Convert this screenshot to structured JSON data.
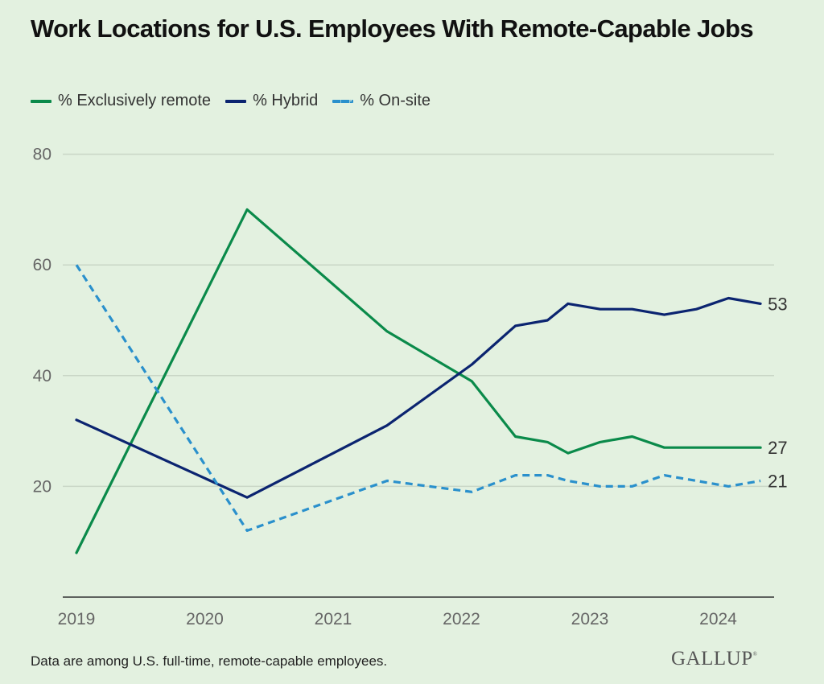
{
  "colors": {
    "background": "#e3f1e0",
    "remote": "#0a8a4a",
    "hybrid": "#0b2470",
    "onsite": "#2a90cc",
    "grid": "#c9d6c6",
    "axis": "#333333",
    "tick": "#666666"
  },
  "logo": {
    "text": "GALLUP",
    "mark": "®"
  },
  "footnote": "Data are among U.S. full-time, remote-capable employees.",
  "chart_data": {
    "type": "line",
    "title": "Work Locations for U.S. Employees With Remote-Capable Jobs",
    "xlabel": "",
    "ylabel": "",
    "x": [
      2019.0,
      2020.33,
      2021.42,
      2022.08,
      2022.42,
      2022.67,
      2022.83,
      2023.08,
      2023.33,
      2023.58,
      2023.83,
      2024.08,
      2024.33
    ],
    "xlim": [
      2019.0,
      2024.42
    ],
    "ylim": [
      0,
      80
    ],
    "x_ticks": [
      2019,
      2020,
      2021,
      2022,
      2023,
      2024
    ],
    "x_tick_labels": [
      "2019",
      "2020",
      "2021",
      "2022",
      "2023",
      "2024"
    ],
    "y_ticks": [
      20,
      40,
      60,
      80
    ],
    "y_tick_labels": [
      "20",
      "40",
      "60",
      "80"
    ],
    "grid": true,
    "legend_position": "top-left",
    "series": [
      {
        "key": "remote",
        "name": "% Exclusively remote",
        "style": "solid",
        "values": [
          8,
          70,
          48,
          39,
          29,
          28,
          26,
          28,
          29,
          27,
          27,
          27,
          27
        ],
        "end_label": "27"
      },
      {
        "key": "hybrid",
        "name": "% Hybrid",
        "style": "solid",
        "values": [
          32,
          18,
          31,
          42,
          49,
          50,
          53,
          52,
          52,
          51,
          52,
          54,
          53
        ],
        "end_label": "53"
      },
      {
        "key": "onsite",
        "name": "% On-site",
        "style": "dashed",
        "values": [
          60,
          12,
          21,
          19,
          22,
          22,
          21,
          20,
          20,
          22,
          21,
          20,
          21
        ],
        "end_label": "21"
      }
    ]
  }
}
